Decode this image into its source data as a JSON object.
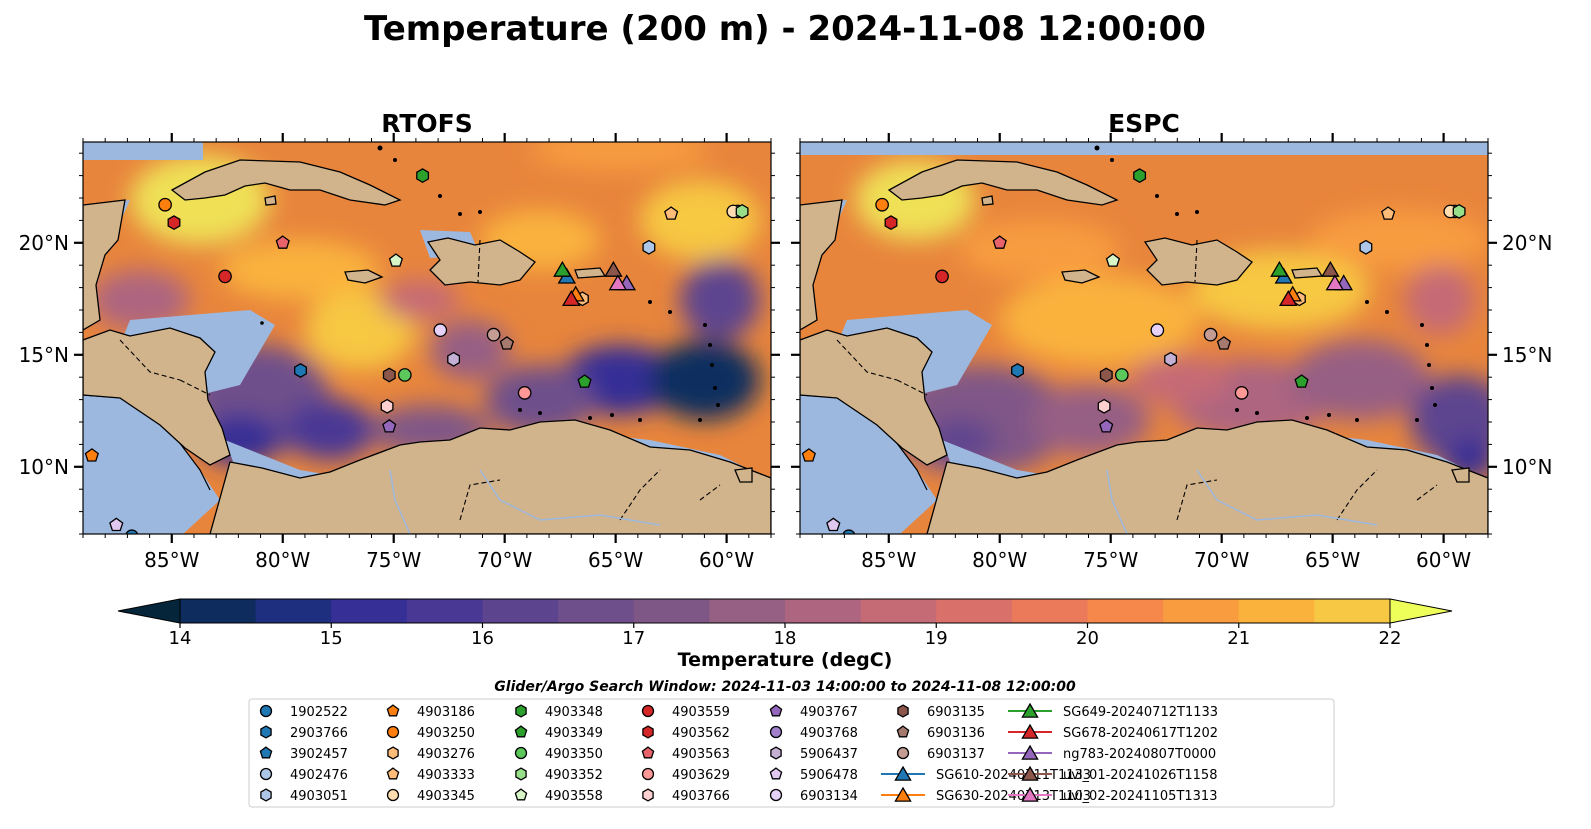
{
  "figure": {
    "title": "Temperature (200 m) - 2024-11-08 12:00:00",
    "search_window": "Glider/Argo Search Window: 2024-11-03 14:00:00 to 2024-11-08 12:00:00"
  },
  "colors": {
    "land": "#d2b48c",
    "shelf": "#9db8de",
    "cmap": [
      "#05263a",
      "#0e2d5e",
      "#1f2f7f",
      "#352f96",
      "#4a3895",
      "#5d448f",
      "#6e4f8b",
      "#7f5787",
      "#965f84",
      "#ad6580",
      "#c56b76",
      "#d9716a",
      "#ea7a5a",
      "#f5884a",
      "#f89c3f",
      "#fab23c",
      "#f7c843",
      "#efe057"
    ]
  },
  "chart_data": {
    "type": "heatmap",
    "variable": "Temperature (degC)",
    "panels": [
      {
        "title": "RTOFS",
        "model": "RTOFS"
      },
      {
        "title": "ESPC",
        "model": "ESPC"
      }
    ],
    "xlim": [
      -89,
      -58
    ],
    "ylim": [
      7,
      24.5
    ],
    "x_ticks": [
      -85,
      -80,
      -75,
      -70,
      -65,
      -60
    ],
    "x_tick_labels": [
      "85°W",
      "80°W",
      "75°W",
      "70°W",
      "65°W",
      "60°W"
    ],
    "y_ticks": [
      10,
      15,
      20
    ],
    "y_tick_labels": [
      "10°N",
      "15°N",
      "20°N"
    ],
    "colorbar": {
      "label": "Temperature (degC)",
      "min": 14,
      "max": 22,
      "step": 0.5,
      "ticks": [
        14,
        15,
        16,
        17,
        18,
        19,
        20,
        21,
        22
      ],
      "tick_labels": [
        "14",
        "15",
        "16",
        "17",
        "18",
        "19",
        "20",
        "21",
        "22"
      ],
      "extend": "both"
    },
    "argo_floats": [
      {
        "id": "1902522",
        "marker": "circle",
        "color": "#1f77b4",
        "lon": -86.8,
        "lat": 6.9
      },
      {
        "id": "2903766",
        "marker": "hexagon",
        "color": "#1f77b4",
        "lon": -79.2,
        "lat": 14.3
      },
      {
        "id": "3902457",
        "marker": "pentagon",
        "color": "#1f77b4",
        "lon": -86.0,
        "lat": 5.8
      },
      {
        "id": "4902476",
        "marker": "circle",
        "color": "#aec7e8",
        "lon": -59.5,
        "lat": 21.4
      },
      {
        "id": "4903051",
        "marker": "hexagon",
        "color": "#aec7e8",
        "lon": -63.5,
        "lat": 19.8
      },
      {
        "id": "4903186",
        "marker": "pentagon",
        "color": "#ff7f0e",
        "lon": -88.6,
        "lat": 10.5
      },
      {
        "id": "4903250",
        "marker": "circle",
        "color": "#ff7f0e",
        "lon": -85.3,
        "lat": 21.7
      },
      {
        "id": "4903276",
        "marker": "hexagon",
        "color": "#ffbb78",
        "lon": -66.5,
        "lat": 17.5
      },
      {
        "id": "4903333",
        "marker": "pentagon",
        "color": "#ffbb78",
        "lon": -62.5,
        "lat": 21.3
      },
      {
        "id": "4903345",
        "marker": "circle",
        "color": "#ffddb0",
        "lon": -59.7,
        "lat": 21.4
      },
      {
        "id": "4903348",
        "marker": "hexagon",
        "color": "#2ca02c",
        "lon": -73.7,
        "lat": 23.0
      },
      {
        "id": "4903349",
        "marker": "pentagon",
        "color": "#2ca02c",
        "lon": -66.4,
        "lat": 13.8
      },
      {
        "id": "4903350",
        "marker": "circle",
        "color": "#5cc85c",
        "lon": -74.5,
        "lat": 14.1
      },
      {
        "id": "4903352",
        "marker": "hexagon",
        "color": "#98df8a",
        "lon": -59.3,
        "lat": 21.4
      },
      {
        "id": "4903558",
        "marker": "pentagon",
        "color": "#d8f5c8",
        "lon": -74.9,
        "lat": 19.2
      },
      {
        "id": "4903559",
        "marker": "circle",
        "color": "#d62728",
        "lon": -82.6,
        "lat": 18.5
      },
      {
        "id": "4903562",
        "marker": "hexagon",
        "color": "#d62728",
        "lon": -84.9,
        "lat": 20.9
      },
      {
        "id": "4903563",
        "marker": "pentagon",
        "color": "#e8636a",
        "lon": -80.0,
        "lat": 20.0
      },
      {
        "id": "4903629",
        "marker": "circle",
        "color": "#ff9896",
        "lon": -69.1,
        "lat": 13.3
      },
      {
        "id": "4903766",
        "marker": "hexagon",
        "color": "#ffd0d0",
        "lon": -75.3,
        "lat": 12.7
      },
      {
        "id": "4903767",
        "marker": "pentagon",
        "color": "#9467bd",
        "lon": -75.2,
        "lat": 11.8
      },
      {
        "id": "4903768",
        "marker": "circle",
        "color": "#a17fcc",
        "lon": -78.5,
        "lat": 6.5
      },
      {
        "id": "5906437",
        "marker": "hexagon",
        "color": "#c5b0d5",
        "lon": -72.3,
        "lat": 14.8
      },
      {
        "id": "5906478",
        "marker": "pentagon",
        "color": "#e0c8f0",
        "lon": -87.5,
        "lat": 7.4
      },
      {
        "id": "6903134",
        "marker": "circle",
        "color": "#e6d2f8",
        "lon": -72.9,
        "lat": 16.1
      },
      {
        "id": "6903135",
        "marker": "hexagon",
        "color": "#8c564b",
        "lon": -75.2,
        "lat": 14.1
      },
      {
        "id": "6903136",
        "marker": "pentagon",
        "color": "#a67a6e",
        "lon": -69.9,
        "lat": 15.5
      },
      {
        "id": "6903137",
        "marker": "circle",
        "color": "#c49c94",
        "lon": -70.5,
        "lat": 15.9
      }
    ],
    "gliders": [
      {
        "id": "SG610-20240711T1133",
        "marker": "triangle",
        "color": "#1f77b4",
        "lon": -67.2,
        "lat": 18.5
      },
      {
        "id": "SG630-20240713T1103",
        "marker": "triangle",
        "color": "#ff7f0e",
        "lon": -66.8,
        "lat": 17.7
      },
      {
        "id": "SG649-20240712T1133",
        "marker": "triangle",
        "color": "#2ca02c",
        "lon": -67.4,
        "lat": 18.8
      },
      {
        "id": "SG678-20240617T1202",
        "marker": "triangle",
        "color": "#d62728",
        "lon": -67.0,
        "lat": 17.5
      },
      {
        "id": "ng783-20240807T0000",
        "marker": "triangle",
        "color": "#9467bd",
        "lon": -64.5,
        "lat": 18.2
      },
      {
        "id": "uvi_01-20241026T1158",
        "marker": "triangle",
        "color": "#8c564b",
        "lon": -65.1,
        "lat": 18.8
      },
      {
        "id": "uvi_02-20241105T1313",
        "marker": "triangle",
        "color": "#e377c2",
        "lon": -64.9,
        "lat": 18.2
      }
    ]
  }
}
